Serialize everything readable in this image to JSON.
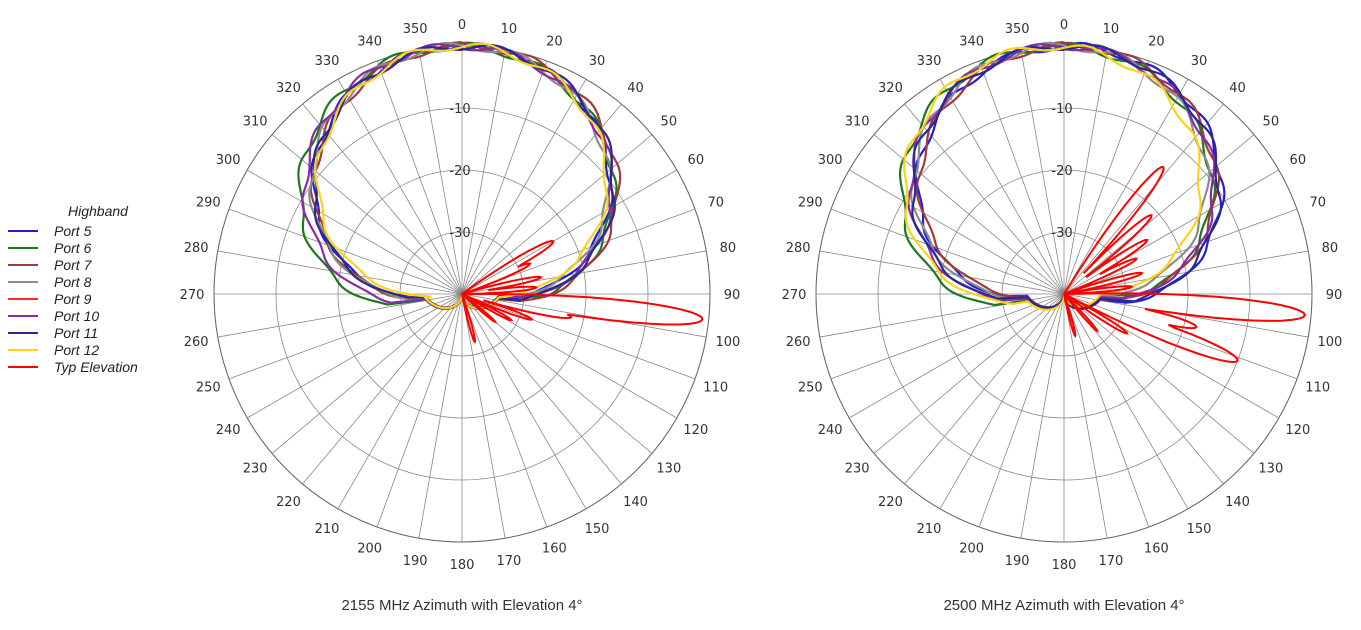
{
  "legend": {
    "title": "Highband",
    "items": [
      {
        "label": "Port 5",
        "color": "#1f1fd6"
      },
      {
        "label": "Port 6",
        "color": "#1a7a1a"
      },
      {
        "label": "Port 7",
        "color": "#a33a3a"
      },
      {
        "label": "Port 8",
        "color": "#8c8c8c"
      },
      {
        "label": "Port 9",
        "color": "#ff2a2a"
      },
      {
        "label": "Port 10",
        "color": "#8a2aa8"
      },
      {
        "label": "Port 11",
        "color": "#2a2a8c"
      },
      {
        "label": "Port 12",
        "color": "#ffd21a"
      },
      {
        "label": "Typ Elevation",
        "color": "#ff0000"
      }
    ]
  },
  "chart_data": [
    {
      "type": "polar",
      "title": "2155 MHz Azimuth with Elevation 4°",
      "angle_ticks": [
        "0",
        "10",
        "20",
        "30",
        "40",
        "50",
        "60",
        "70",
        "80",
        "90",
        "100",
        "110",
        "120",
        "130",
        "140",
        "150",
        "160",
        "170",
        "180",
        "190",
        "200",
        "210",
        "220",
        "230",
        "240",
        "250",
        "260",
        "270",
        "280",
        "290",
        "300",
        "310",
        "320",
        "330",
        "340",
        "350"
      ],
      "radial_ticks": [
        "0",
        "-10",
        "-20",
        "-30"
      ],
      "r_range_db": [
        -40,
        0
      ],
      "series": [
        {
          "name": "Port 5",
          "pattern": "azimuth",
          "offset_deg": 0,
          "width_deg": 58
        },
        {
          "name": "Port 6",
          "pattern": "azimuth",
          "offset_deg": -3,
          "width_deg": 63
        },
        {
          "name": "Port 7",
          "pattern": "azimuth",
          "offset_deg": 2,
          "width_deg": 60
        },
        {
          "name": "Port 8",
          "pattern": "azimuth",
          "offset_deg": -1,
          "width_deg": 58
        },
        {
          "name": "Port 10",
          "pattern": "azimuth",
          "offset_deg": -2,
          "width_deg": 61
        },
        {
          "name": "Port 11",
          "pattern": "azimuth",
          "offset_deg": 1,
          "width_deg": 59
        },
        {
          "name": "Port 12",
          "pattern": "azimuth",
          "offset_deg": 0,
          "width_deg": 56
        },
        {
          "name": "Typ Elevation",
          "pattern": "elevation",
          "lobes": [
            [
              96,
              -1,
              2.2
            ],
            [
              60,
              -23,
              3
            ],
            [
              66,
              -28,
              3
            ],
            [
              78,
              -27,
              2.5
            ],
            [
              85,
              -28,
              2.5
            ],
            [
              102,
              -22,
              2.5
            ],
            [
              110,
              -28,
              2.5
            ],
            [
              118,
              -31,
              2.5
            ],
            [
              130,
              -33,
              2.5
            ],
            [
              165,
              -32,
              3
            ]
          ]
        }
      ]
    },
    {
      "type": "polar",
      "title": "2500 MHz Azimuth with Elevation 4°",
      "angle_ticks": [
        "0",
        "10",
        "20",
        "30",
        "40",
        "50",
        "60",
        "70",
        "80",
        "90",
        "100",
        "110",
        "120",
        "130",
        "140",
        "150",
        "160",
        "170",
        "180",
        "190",
        "200",
        "210",
        "220",
        "230",
        "240",
        "250",
        "260",
        "270",
        "280",
        "290",
        "300",
        "310",
        "320",
        "330",
        "340",
        "350"
      ],
      "radial_ticks": [
        "0",
        "-10",
        "-20",
        "-30"
      ],
      "r_range_db": [
        -40,
        0
      ],
      "series": [
        {
          "name": "Port 5",
          "pattern": "azimuth",
          "offset_deg": 3,
          "width_deg": 60
        },
        {
          "name": "Port 6",
          "pattern": "azimuth",
          "offset_deg": -4,
          "width_deg": 62
        },
        {
          "name": "Port 7",
          "pattern": "azimuth",
          "offset_deg": 2,
          "width_deg": 58
        },
        {
          "name": "Port 8",
          "pattern": "azimuth",
          "offset_deg": -2,
          "width_deg": 57
        },
        {
          "name": "Port 10",
          "pattern": "azimuth",
          "offset_deg": -1,
          "width_deg": 60
        },
        {
          "name": "Port 11",
          "pattern": "azimuth",
          "offset_deg": 1,
          "width_deg": 61
        },
        {
          "name": "Port 12",
          "pattern": "azimuth",
          "offset_deg": -6,
          "width_deg": 58
        },
        {
          "name": "Typ Elevation",
          "pattern": "elevation",
          "lobes": [
            [
              95,
              -1,
              2.2
            ],
            [
              38,
              -14,
              2.5
            ],
            [
              48,
              -21,
              2.5
            ],
            [
              57,
              -24,
              2.5
            ],
            [
              64,
              -27,
              2.5
            ],
            [
              75,
              -27,
              2.5
            ],
            [
              84,
              -29,
              2.5
            ],
            [
              104,
              -18,
              2.5
            ],
            [
              111,
              -10,
              2.5
            ],
            [
              122,
              -28,
              2.5
            ],
            [
              138,
              -32,
              2.5
            ],
            [
              165,
              -33,
              3
            ]
          ]
        }
      ]
    }
  ]
}
